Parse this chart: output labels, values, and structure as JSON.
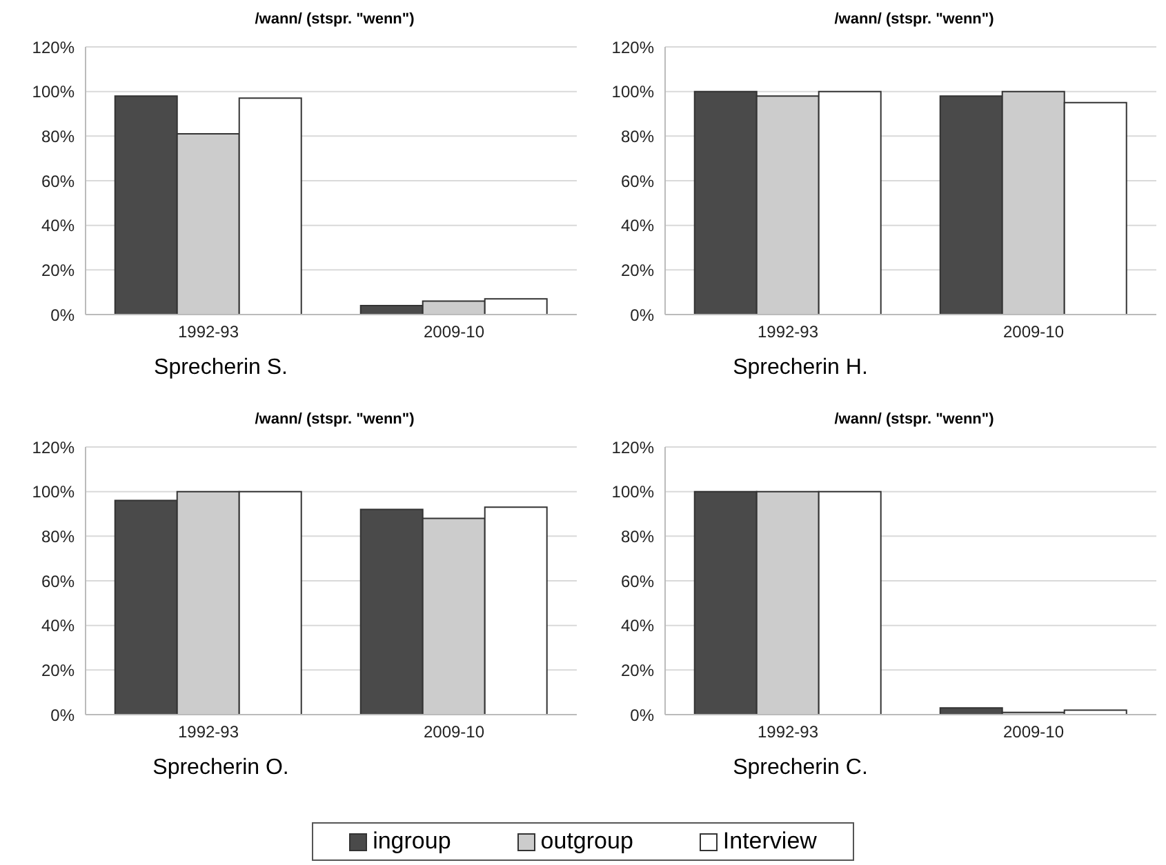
{
  "chart_data": [
    {
      "type": "bar",
      "title": "/wann/ (stspr. \"wenn\")",
      "xlabel": "Sprecherin S.",
      "categories": [
        "1992-93",
        "2009-10"
      ],
      "series": [
        {
          "name": "ingroup",
          "color": "#4a4a4a",
          "values": [
            98,
            4
          ]
        },
        {
          "name": "outgroup",
          "color": "#cccccc",
          "values": [
            81,
            6
          ]
        },
        {
          "name": "Interview",
          "color": "#ffffff",
          "values": [
            97,
            7
          ]
        }
      ],
      "ylim": [
        0,
        120
      ],
      "yticks": [
        {
          "value": 0,
          "label": "0%"
        },
        {
          "value": 20,
          "label": "20%"
        },
        {
          "value": 40,
          "label": "40%"
        },
        {
          "value": 60,
          "label": "60%"
        },
        {
          "value": 80,
          "label": "80%"
        },
        {
          "value": 100,
          "label": "100%"
        },
        {
          "value": 120,
          "label": "120%"
        }
      ],
      "grid": "y",
      "legend": "bottom"
    },
    {
      "type": "bar",
      "title": "/wann/ (stspr. \"wenn\")",
      "xlabel": "Sprecherin H.",
      "categories": [
        "1992-93",
        "2009-10"
      ],
      "series": [
        {
          "color": "#4a4a4a",
          "values": [
            100,
            98
          ]
        },
        {
          "color": "#cccccc",
          "values": [
            98,
            100
          ]
        },
        {
          "color": "#ffffff",
          "values": [
            100,
            95
          ]
        }
      ],
      "ylim": [
        0,
        120
      ],
      "yticks": [
        {
          "value": 0,
          "label": "0%"
        },
        {
          "value": 20,
          "label": "20%"
        },
        {
          "value": 40,
          "label": "40%"
        },
        {
          "value": 60,
          "label": "60%"
        },
        {
          "value": 80,
          "label": "80%"
        },
        {
          "value": 100,
          "label": "100%"
        },
        {
          "value": 120,
          "label": "120%"
        }
      ],
      "grid": "y"
    },
    {
      "type": "bar",
      "title": "/wann/ (stspr. \"wenn\")",
      "xlabel": "Sprecherin O.",
      "categories": [
        "1992-93",
        "2009-10"
      ],
      "series": [
        {
          "color": "#4a4a4a",
          "values": [
            96,
            92
          ]
        },
        {
          "color": "#cccccc",
          "values": [
            100,
            88
          ]
        },
        {
          "color": "#ffffff",
          "values": [
            100,
            93
          ]
        }
      ],
      "ylim": [
        0,
        120
      ],
      "yticks": [
        {
          "value": 0,
          "label": "0%"
        },
        {
          "value": 20,
          "label": "20%"
        },
        {
          "value": 40,
          "label": "40%"
        },
        {
          "value": 60,
          "label": "60%"
        },
        {
          "value": 80,
          "label": "80%"
        },
        {
          "value": 100,
          "label": "100%"
        },
        {
          "value": 120,
          "label": "120%"
        }
      ],
      "grid": "y"
    },
    {
      "type": "bar",
      "title": "/wann/ (stspr. \"wenn\")",
      "xlabel": "Sprecherin C.",
      "categories": [
        "1992-93",
        "2009-10"
      ],
      "series": [
        {
          "color": "#4a4a4a",
          "values": [
            100,
            3
          ]
        },
        {
          "color": "#cccccc",
          "values": [
            100,
            1
          ]
        },
        {
          "color": "#ffffff",
          "values": [
            100,
            2
          ]
        }
      ],
      "ylim": [
        0,
        120
      ],
      "yticks": [
        {
          "value": 0,
          "label": "0%"
        },
        {
          "value": 20,
          "label": "20%"
        },
        {
          "value": 40,
          "label": "40%"
        },
        {
          "value": 60,
          "label": "60%"
        },
        {
          "value": 80,
          "label": "80%"
        },
        {
          "value": 100,
          "label": "100%"
        },
        {
          "value": 120,
          "label": "120%"
        }
      ],
      "grid": "y"
    }
  ]
}
